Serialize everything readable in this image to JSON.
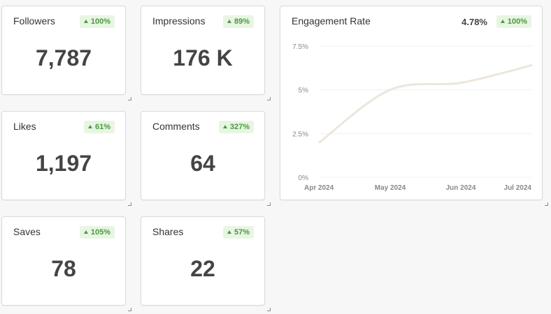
{
  "metrics": [
    {
      "title": "Followers",
      "change": "100%",
      "value": "7,787"
    },
    {
      "title": "Impressions",
      "change": "89%",
      "value": "176 K"
    },
    {
      "title": "Likes",
      "change": "61%",
      "value": "1,197"
    },
    {
      "title": "Comments",
      "change": "327%",
      "value": "64"
    },
    {
      "title": "Saves",
      "change": "105%",
      "value": "78"
    },
    {
      "title": "Shares",
      "change": "57%",
      "value": "22"
    }
  ],
  "engagement": {
    "title": "Engagement Rate",
    "value": "4.78%",
    "change": "100%"
  },
  "colors": {
    "badge_bg": "#e8f5e3",
    "badge_text": "#4a9a3c",
    "line": "#ece6dc"
  },
  "chart_data": {
    "type": "line",
    "x": [
      "Apr 2024",
      "May 2024",
      "Jun 2024",
      "Jul 2024"
    ],
    "x_ticks": [
      "Apr 2024",
      "May 2024",
      "Jun 2024",
      "Jul 2024"
    ],
    "y_ticks": [
      "0%",
      "2.5%",
      "5%",
      "7.5%"
    ],
    "series": [
      {
        "values": [
          2.0,
          5.0,
          5.4,
          6.4
        ]
      }
    ],
    "ylim": [
      0,
      7.5
    ],
    "grid": true,
    "smooth": true
  }
}
